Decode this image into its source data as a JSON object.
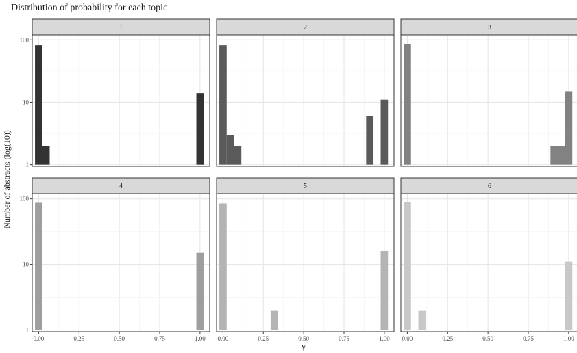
{
  "chart_data": {
    "type": "bar",
    "title": "Distribution of probability for each topic",
    "xlabel": "γ",
    "ylabel": "Number of abstracts (log(10))",
    "y_scale": "log10",
    "ylim": [
      1,
      100
    ],
    "xlim": [
      -0.04,
      1.06
    ],
    "x_ticks": [
      0.0,
      0.25,
      0.5,
      0.75,
      1.0
    ],
    "x_tick_labels": [
      "0.00",
      "0.25",
      "0.50",
      "0.75",
      "1.00"
    ],
    "y_ticks": [
      1,
      10,
      100
    ],
    "y_tick_labels": [
      "1",
      "10",
      "100"
    ],
    "bin_width": 0.0455,
    "grid": true,
    "legend": "none",
    "facets": [
      {
        "label": "1",
        "color": "#333333",
        "bins": [
          {
            "x": 0.0,
            "count": 82
          },
          {
            "x": 0.0455,
            "count": 2
          },
          {
            "x": 1.0,
            "count": 14
          }
        ]
      },
      {
        "label": "2",
        "color": "#5a5a5a",
        "bins": [
          {
            "x": 0.0,
            "count": 82
          },
          {
            "x": 0.0455,
            "count": 3
          },
          {
            "x": 0.091,
            "count": 2
          },
          {
            "x": 0.91,
            "count": 6
          },
          {
            "x": 1.0,
            "count": 11
          }
        ]
      },
      {
        "label": "3",
        "color": "#828282",
        "bins": [
          {
            "x": 0.0,
            "count": 85
          },
          {
            "x": 0.91,
            "count": 2
          },
          {
            "x": 0.955,
            "count": 2
          },
          {
            "x": 1.0,
            "count": 15
          }
        ]
      },
      {
        "label": "4",
        "color": "#9e9e9e",
        "bins": [
          {
            "x": 0.0,
            "count": 87
          },
          {
            "x": 1.0,
            "count": 15
          }
        ]
      },
      {
        "label": "5",
        "color": "#b4b4b4",
        "bins": [
          {
            "x": 0.0,
            "count": 85
          },
          {
            "x": 0.318,
            "count": 2
          },
          {
            "x": 1.0,
            "count": 16
          }
        ]
      },
      {
        "label": "6",
        "color": "#c8c8c8",
        "bins": [
          {
            "x": 0.0,
            "count": 89
          },
          {
            "x": 0.091,
            "count": 2
          },
          {
            "x": 1.0,
            "count": 11
          }
        ]
      }
    ]
  }
}
